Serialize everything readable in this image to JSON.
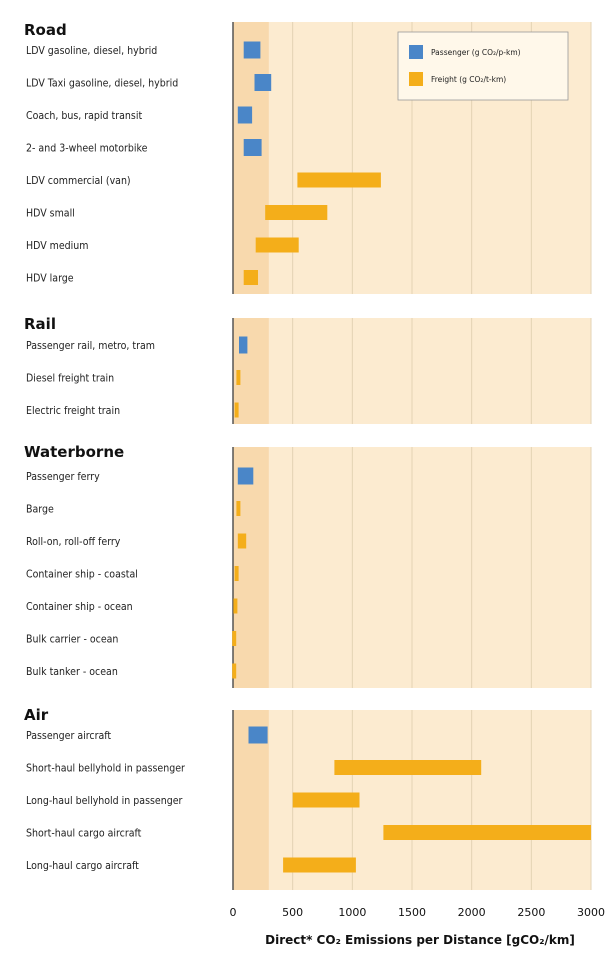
{
  "chart_data": {
    "type": "bar",
    "orientation": "horizontal",
    "subtype": "floating-range",
    "xlim": [
      0,
      3000
    ],
    "xticks": [
      "0",
      "500",
      "1000",
      "1500",
      "2000",
      "2500",
      "3000"
    ],
    "grid": true,
    "legend_position": "top-right",
    "x_axis_title": "Direct* CO₂ Emissions per Distance [gCO₂/km]",
    "colors": {
      "passenger": "#4a86c8",
      "freight": "#f4ae1a",
      "panel": "#fcebd0",
      "panel_shade": "#f8d9ad",
      "grid": "#e3d3b4",
      "axis": "#555555"
    },
    "series": [
      {
        "key": "passenger",
        "name": "Passenger (g CO₂/p-km)"
      },
      {
        "key": "freight",
        "name": "Freight (g CO₂/t-km)"
      }
    ],
    "groups": [
      {
        "title": "Road",
        "items": [
          {
            "label": "LDV gasoline, diesel, hybrid",
            "series": "passenger",
            "range": [
              90,
              230
            ]
          },
          {
            "label": "LDV Taxi gasoline, diesel, hybrid",
            "series": "passenger",
            "range": [
              180,
              320
            ]
          },
          {
            "label": "Coach, bus, rapid transit",
            "series": "passenger",
            "range": [
              40,
              160
            ]
          },
          {
            "label": "2- and 3-wheel motorbike",
            "series": "passenger",
            "range": [
              90,
              240
            ]
          },
          {
            "label": "LDV commercial (van)",
            "series": "freight",
            "range": [
              540,
              1240
            ]
          },
          {
            "label": "HDV small",
            "series": "freight",
            "range": [
              270,
              790
            ]
          },
          {
            "label": "HDV medium",
            "series": "freight",
            "range": [
              190,
              550
            ]
          },
          {
            "label": "HDV large",
            "series": "freight",
            "range": [
              90,
              210
            ]
          }
        ]
      },
      {
        "title": "Rail",
        "items": [
          {
            "label": "Passenger rail, metro, tram",
            "series": "passenger",
            "range": [
              50,
              120
            ]
          },
          {
            "label": "Diesel freight train",
            "series": "freight",
            "range": [
              30,
              60
            ]
          },
          {
            "label": "Electric freight train",
            "series": "freight",
            "range": [
              20,
              40
            ]
          }
        ]
      },
      {
        "title": "Waterborne",
        "items": [
          {
            "label": "Passenger ferry",
            "series": "passenger",
            "range": [
              40,
              170
            ]
          },
          {
            "label": "Barge",
            "series": "freight",
            "range": [
              30,
              60
            ]
          },
          {
            "label": "Roll-on, roll-off ferry",
            "series": "freight",
            "range": [
              40,
              110
            ]
          },
          {
            "label": "Container ship - coastal",
            "series": "freight",
            "range": [
              20,
              40
            ]
          },
          {
            "label": "Container ship - ocean",
            "series": "freight",
            "range": [
              10,
              30
            ]
          },
          {
            "label": "Bulk carrier - ocean",
            "series": "freight",
            "range": [
              5,
              15
            ]
          },
          {
            "label": "Bulk tanker - ocean",
            "series": "freight",
            "range": [
              5,
              15
            ]
          }
        ]
      },
      {
        "title": "Air",
        "items": [
          {
            "label": "Passenger aircraft",
            "series": "passenger",
            "range": [
              130,
              290
            ]
          },
          {
            "label": "Short-haul bellyhold in passenger",
            "series": "freight",
            "range": [
              850,
              2080
            ]
          },
          {
            "label": "Long-haul bellyhold in passenger",
            "series": "freight",
            "range": [
              500,
              1060
            ]
          },
          {
            "label": "Short-haul cargo aircraft",
            "series": "freight",
            "range": [
              1260,
              3000
            ]
          },
          {
            "label": "Long-haul cargo aircraft",
            "series": "freight",
            "range": [
              420,
              1030
            ]
          }
        ]
      }
    ]
  }
}
